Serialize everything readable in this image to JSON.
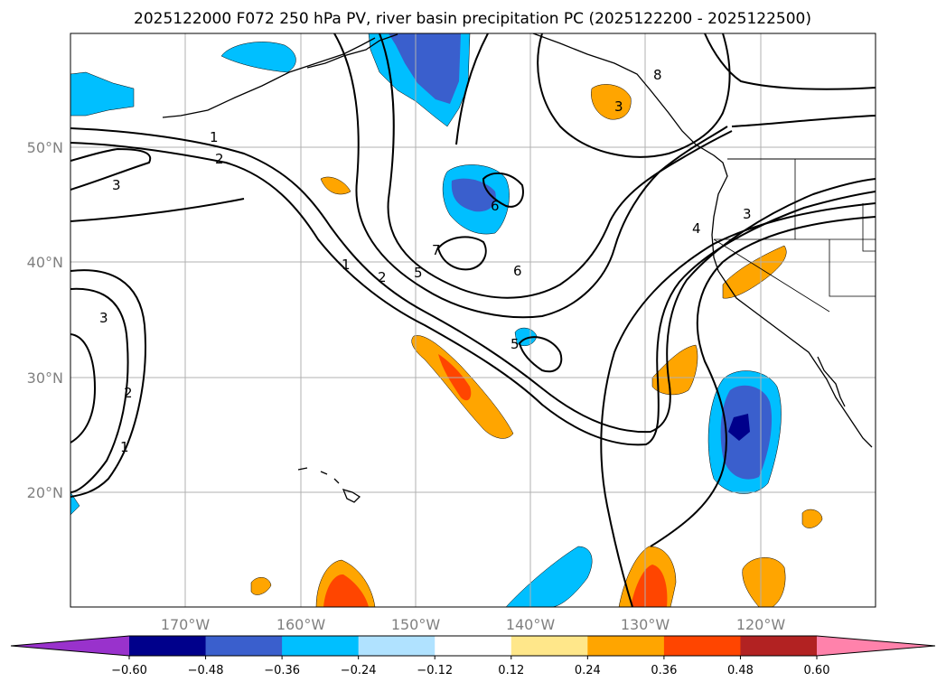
{
  "title": "2025122000 F072 250 hPa PV, river basin precipitation PC (2025122200 - 2025122500)",
  "map": {
    "lat_labels": [
      "50°N",
      "40°N",
      "30°N",
      "20°N"
    ],
    "lon_labels": [
      "170°W",
      "160°W",
      "150°W",
      "140°W",
      "130°W",
      "120°W"
    ],
    "extent": {
      "lon_min": -180,
      "lon_max": -110,
      "lat_min": 10,
      "lat_max": 60
    },
    "pv_contour_labels": [
      "1",
      "2",
      "3",
      "1",
      "2",
      "5",
      "6",
      "7",
      "6",
      "5",
      "8",
      "4",
      "3",
      "3",
      "2",
      "1",
      "3"
    ]
  },
  "colorbar": {
    "ticks": [
      "−0.60",
      "−0.48",
      "−0.36",
      "−0.24",
      "−0.12",
      "0.12",
      "0.24",
      "0.36",
      "0.48",
      "0.60"
    ],
    "colors": [
      "#9932cc",
      "#00008b",
      "#3a5fcd",
      "#00bfff",
      "#b0e2ff",
      "#ffffff",
      "#ffe78a",
      "#ffa500",
      "#ff4500",
      "#b22222",
      "#ff82ab"
    ]
  },
  "colors": {
    "land_line": "#000000",
    "grid": "#b0b0b0",
    "label_gray": "#808080"
  }
}
